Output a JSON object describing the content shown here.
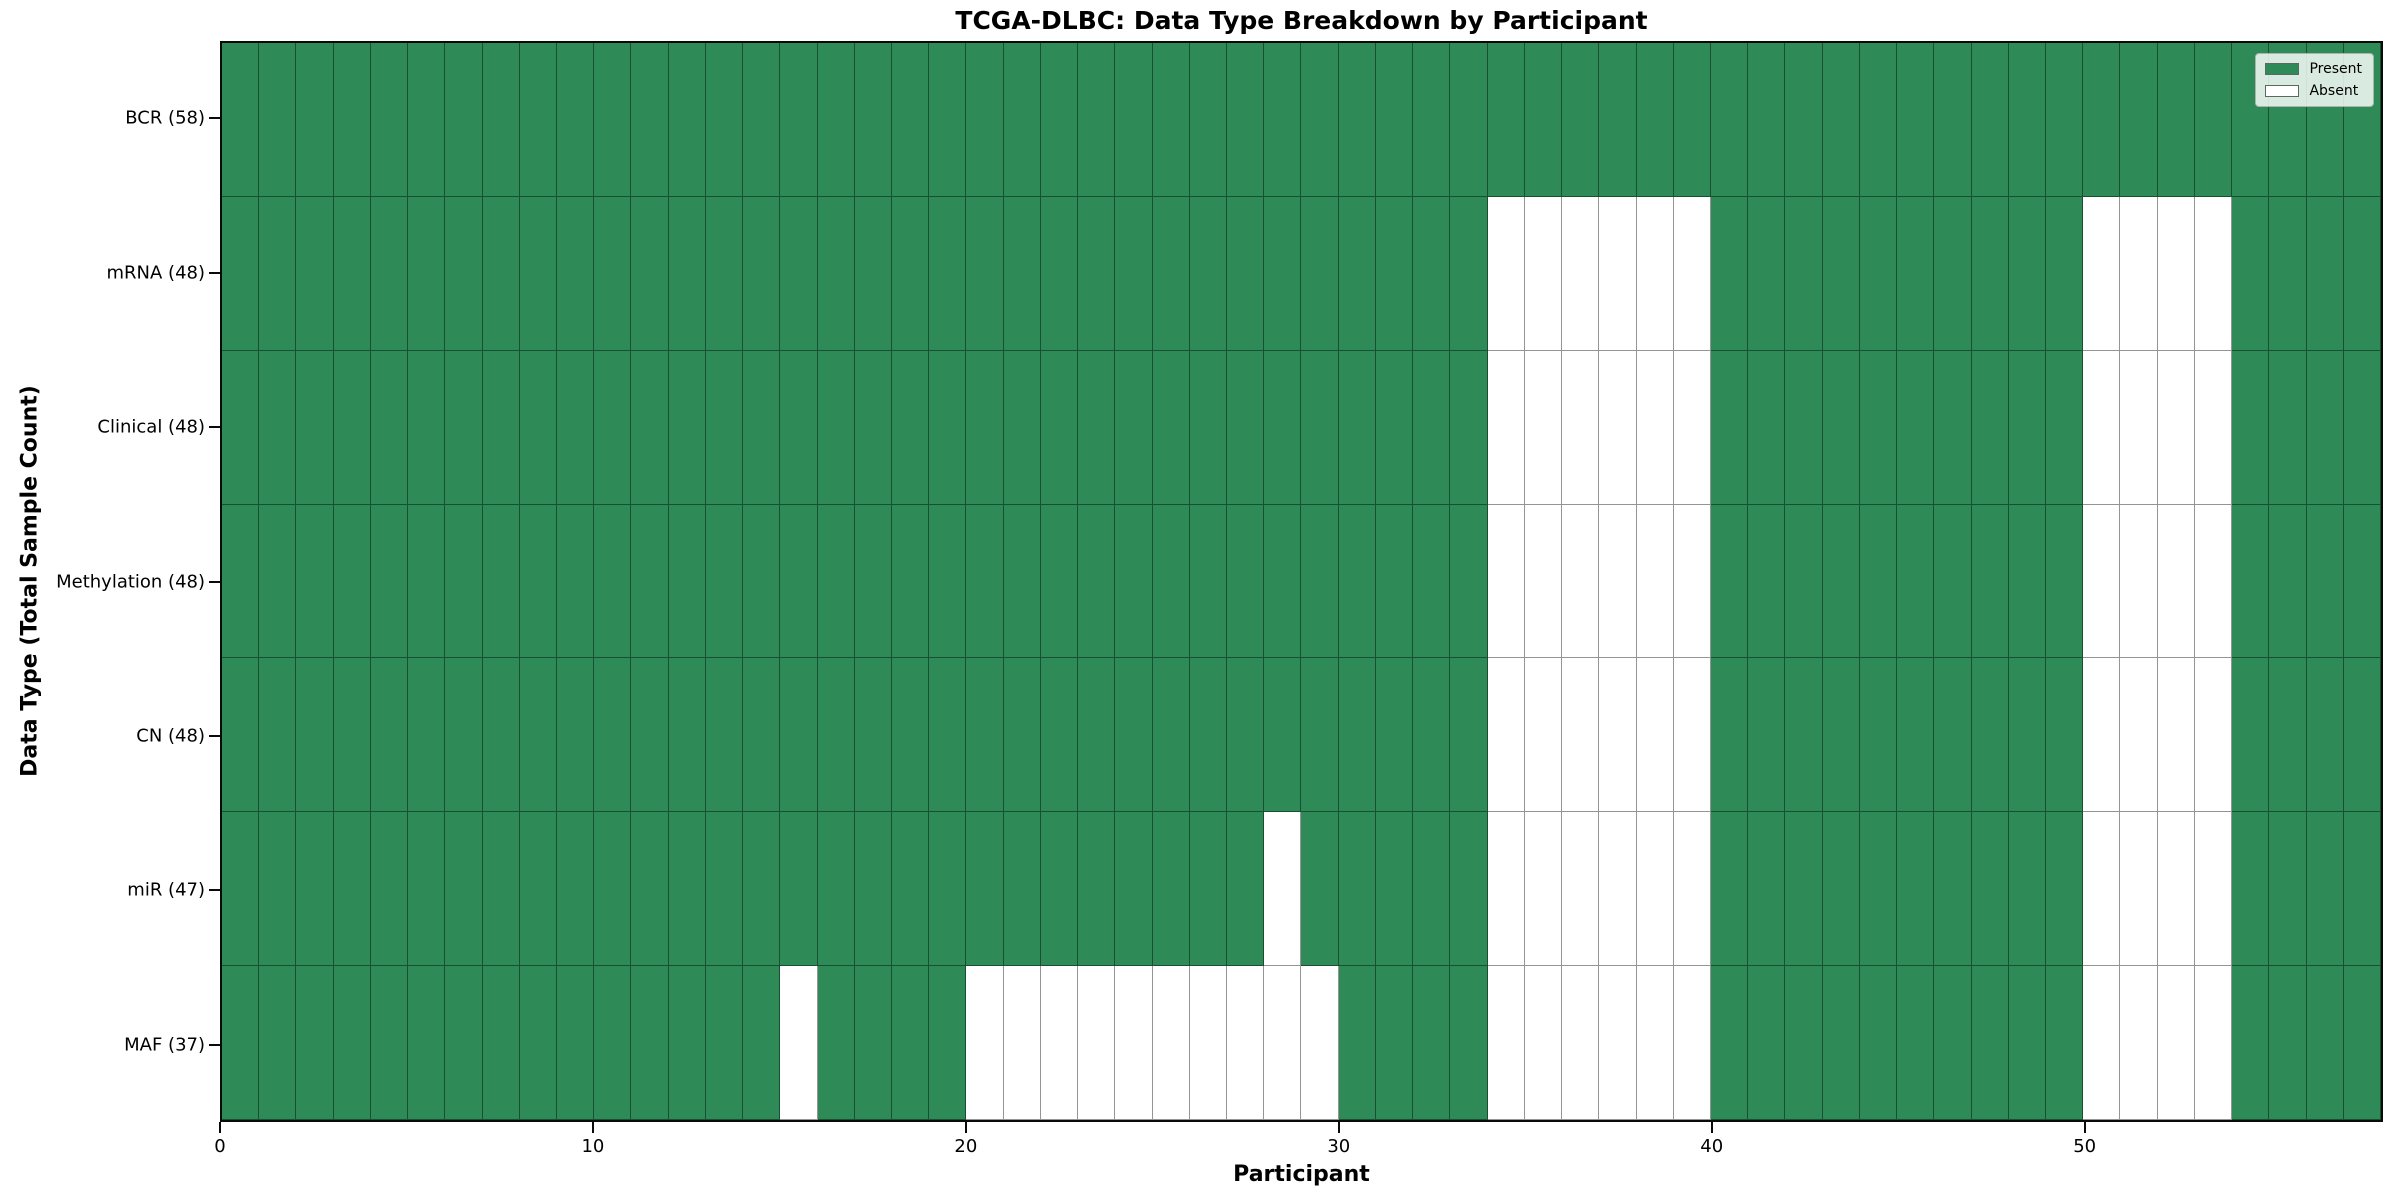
{
  "title": "TCGA-DLBC: Data Type Breakdown by Participant",
  "x_axis": {
    "label": "Participant",
    "tick_values": [
      0,
      10,
      20,
      30,
      40,
      50
    ]
  },
  "y_axis": {
    "label": "Data Type (Total Sample Count)"
  },
  "legend": {
    "present_label": "Present",
    "absent_label": "Absent"
  },
  "colors": {
    "present": "#2E8B57",
    "absent": "#FFFFFF",
    "gridline": "rgba(0,0,0,0.42)"
  },
  "chart_data": {
    "type": "heatmap",
    "title": "TCGA-DLBC: Data Type Breakdown by Participant",
    "xlabel": "Participant",
    "ylabel": "Data Type (Total Sample Count)",
    "x_range": [
      0,
      58
    ],
    "n_participants": 58,
    "grid": true,
    "legend_position": "upper right",
    "cell_states": [
      "Present",
      "Absent"
    ],
    "rows": [
      {
        "label": "BCR (58)",
        "data_type": "BCR",
        "total_samples": 58,
        "absent_participants": []
      },
      {
        "label": "mRNA (48)",
        "data_type": "mRNA",
        "total_samples": 48,
        "absent_participants": [
          34,
          35,
          36,
          37,
          38,
          39,
          50,
          51,
          52,
          53
        ]
      },
      {
        "label": "Clinical (48)",
        "data_type": "Clinical",
        "total_samples": 48,
        "absent_participants": [
          34,
          35,
          36,
          37,
          38,
          39,
          50,
          51,
          52,
          53
        ]
      },
      {
        "label": "Methylation (48)",
        "data_type": "Methylation",
        "total_samples": 48,
        "absent_participants": [
          34,
          35,
          36,
          37,
          38,
          39,
          50,
          51,
          52,
          53
        ]
      },
      {
        "label": "CN (48)",
        "data_type": "CN",
        "total_samples": 48,
        "absent_participants": [
          34,
          35,
          36,
          37,
          38,
          39,
          50,
          51,
          52,
          53
        ]
      },
      {
        "label": "miR (47)",
        "data_type": "miR",
        "total_samples": 47,
        "absent_participants": [
          28,
          34,
          35,
          36,
          37,
          38,
          39,
          50,
          51,
          52,
          53
        ]
      },
      {
        "label": "MAF (37)",
        "data_type": "MAF",
        "total_samples": 37,
        "absent_participants": [
          15,
          20,
          21,
          22,
          23,
          24,
          25,
          26,
          27,
          28,
          29,
          34,
          35,
          36,
          37,
          38,
          39,
          50,
          51,
          52,
          53
        ]
      }
    ]
  }
}
